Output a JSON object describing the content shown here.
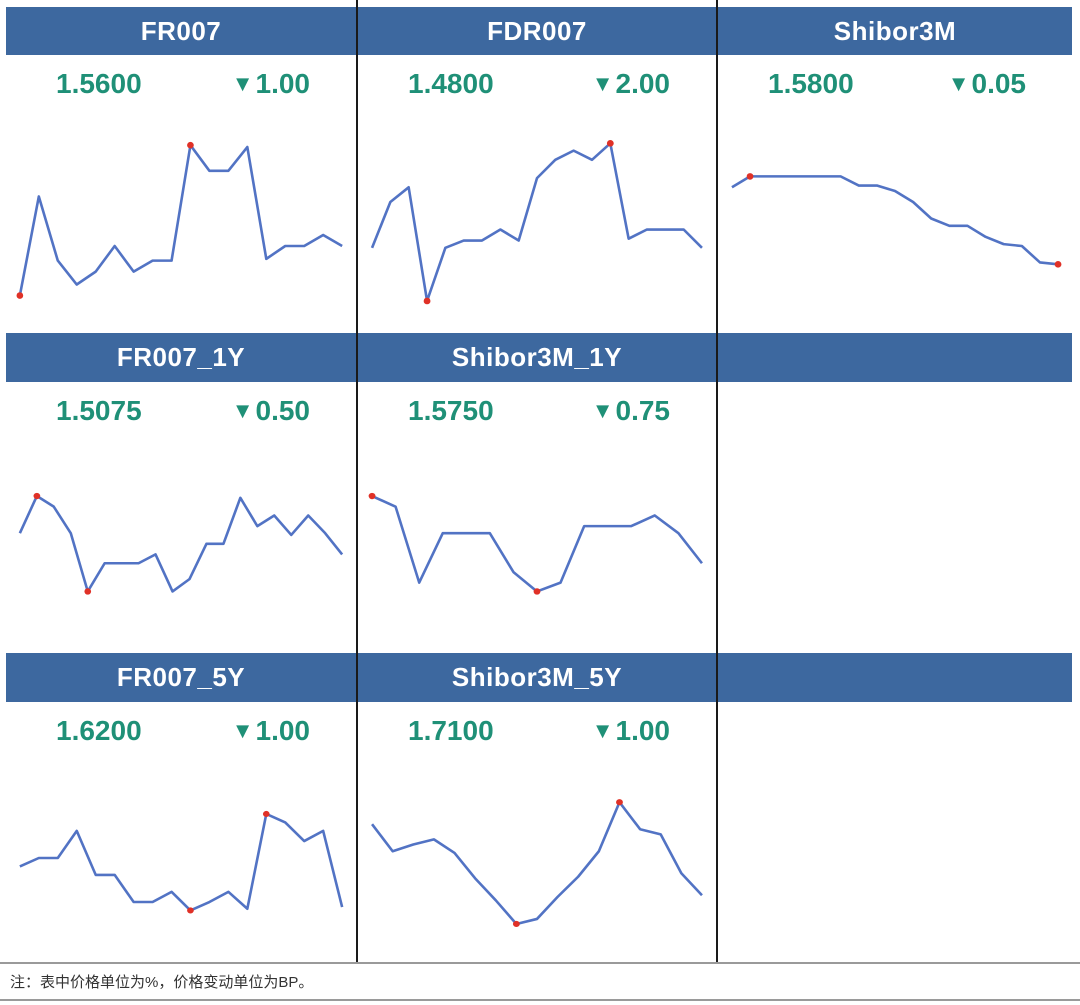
{
  "colors": {
    "header_bg": "#3d689f",
    "header_text": "#ffffff",
    "value": "#1f9077",
    "line": "#5273c4",
    "marker": "#e03127",
    "divider": "#1a1a1a",
    "rule": "#9a9a9a"
  },
  "change_icon": "▼",
  "note": "注：表中价格单位为%，价格变动单位为BP。",
  "chart_data": [
    {
      "type": "line",
      "title": "FR007",
      "value": "1.5600",
      "change_bp": "1.00",
      "change_direction": "down",
      "row": 1,
      "col": 1,
      "y_normalized": [
        0.08,
        0.62,
        0.27,
        0.14,
        0.21,
        0.35,
        0.21,
        0.27,
        0.27,
        0.9,
        0.76,
        0.76,
        0.89,
        0.28,
        0.35,
        0.35,
        0.41,
        0.35
      ],
      "min_index": 0,
      "max_index": 9
    },
    {
      "type": "line",
      "title": "FDR007",
      "value": "1.4800",
      "change_bp": "2.00",
      "change_direction": "down",
      "row": 1,
      "col": 2,
      "y_normalized": [
        0.34,
        0.59,
        0.67,
        0.05,
        0.34,
        0.38,
        0.38,
        0.44,
        0.38,
        0.72,
        0.82,
        0.87,
        0.82,
        0.91,
        0.39,
        0.44,
        0.44,
        0.44,
        0.34
      ],
      "min_index": 3,
      "max_index": 13
    },
    {
      "type": "line",
      "title": "Shibor3M",
      "value": "1.5800",
      "change_bp": "0.05",
      "change_direction": "down",
      "row": 1,
      "col": 3,
      "y_normalized": [
        0.67,
        0.73,
        0.73,
        0.73,
        0.73,
        0.73,
        0.73,
        0.68,
        0.68,
        0.65,
        0.59,
        0.5,
        0.46,
        0.46,
        0.4,
        0.36,
        0.35,
        0.26,
        0.25
      ],
      "min_index": 18,
      "max_index": 1
    },
    {
      "type": "line",
      "title": "FR007_1Y",
      "value": "1.5075",
      "change_bp": "0.50",
      "change_direction": "down",
      "row": 2,
      "col": 1,
      "y_normalized": [
        0.55,
        0.76,
        0.7,
        0.55,
        0.22,
        0.38,
        0.38,
        0.38,
        0.43,
        0.22,
        0.29,
        0.49,
        0.49,
        0.75,
        0.59,
        0.65,
        0.54,
        0.65,
        0.55,
        0.43
      ],
      "min_index": 4,
      "max_index": 1
    },
    {
      "type": "line",
      "title": "Shibor3M_1Y",
      "value": "1.5750",
      "change_bp": "0.75",
      "change_direction": "down",
      "row": 2,
      "col": 2,
      "y_normalized": [
        0.76,
        0.7,
        0.27,
        0.55,
        0.55,
        0.55,
        0.33,
        0.22,
        0.27,
        0.59,
        0.59,
        0.59,
        0.65,
        0.55,
        0.38
      ],
      "min_index": 7,
      "max_index": 0
    },
    {
      "type": "line",
      "title": "FR007_5Y",
      "value": "1.6200",
      "change_bp": "1.00",
      "change_direction": "down",
      "row": 3,
      "col": 1,
      "y_normalized": [
        0.45,
        0.5,
        0.5,
        0.66,
        0.4,
        0.4,
        0.24,
        0.24,
        0.3,
        0.19,
        0.24,
        0.3,
        0.2,
        0.76,
        0.71,
        0.6,
        0.66,
        0.21
      ],
      "min_index": 9,
      "max_index": 13
    },
    {
      "type": "line",
      "title": "Shibor3M_5Y",
      "value": "1.7100",
      "change_bp": "1.00",
      "change_direction": "down",
      "row": 3,
      "col": 2,
      "y_normalized": [
        0.7,
        0.54,
        0.58,
        0.61,
        0.53,
        0.38,
        0.25,
        0.11,
        0.14,
        0.27,
        0.39,
        0.54,
        0.83,
        0.67,
        0.64,
        0.41,
        0.28
      ],
      "min_index": 7,
      "max_index": 12
    }
  ],
  "empty_header_cells": [
    {
      "row": 2,
      "col": 3
    },
    {
      "row": 3,
      "col": 3
    }
  ]
}
